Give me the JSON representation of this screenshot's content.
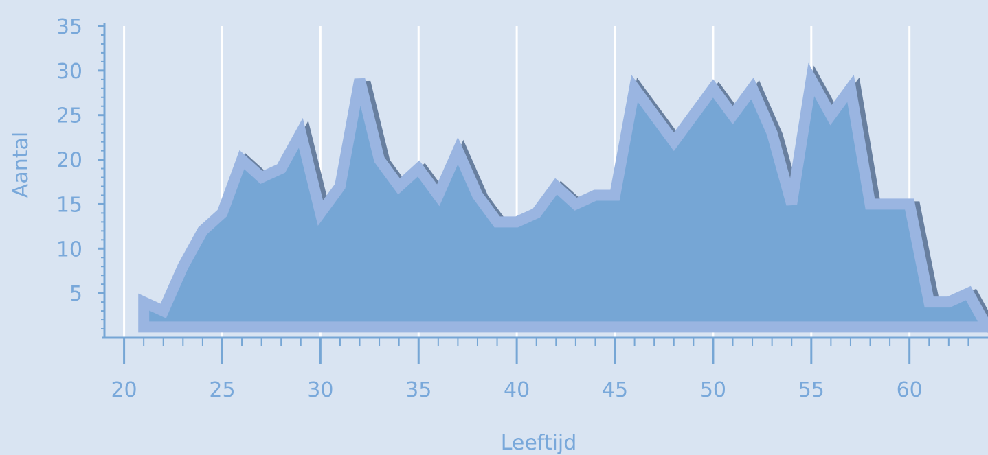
{
  "chart_data": {
    "type": "area",
    "xlabel": "Leeftijd",
    "ylabel": "Aantal",
    "xlim": [
      19,
      64
    ],
    "ylim": [
      0,
      35
    ],
    "x_ticks": [
      20,
      25,
      30,
      35,
      40,
      45,
      50,
      55,
      60
    ],
    "y_ticks": [
      5,
      10,
      15,
      20,
      25,
      30,
      35
    ],
    "grid": "vertical",
    "legend": "none",
    "x": [
      21,
      22,
      23,
      24,
      25,
      26,
      27,
      28,
      29,
      30,
      31,
      32,
      33,
      34,
      35,
      36,
      37,
      38,
      39,
      40,
      41,
      42,
      43,
      44,
      45,
      46,
      47,
      48,
      49,
      50,
      51,
      52,
      53,
      54,
      55,
      56,
      57,
      58,
      59,
      60,
      61,
      62,
      63,
      64
    ],
    "values": [
      4,
      3,
      8,
      12,
      14,
      20,
      18,
      19,
      23,
      14,
      17,
      29,
      20,
      17,
      19,
      16,
      21,
      16,
      13,
      13,
      14,
      17,
      15,
      16,
      16,
      28,
      25,
      22,
      25,
      28,
      25,
      28,
      23,
      15,
      29,
      25,
      28,
      15,
      15,
      15,
      4,
      4,
      5,
      1
    ],
    "colors": {
      "background": "#d9e4f2",
      "area_fill": "#76a6d5",
      "area_outline": "#9ab5e1",
      "shadow": "#687f9f",
      "axis": "#76a6d5",
      "grid": "#ffffff",
      "text": "#79a8da"
    }
  }
}
